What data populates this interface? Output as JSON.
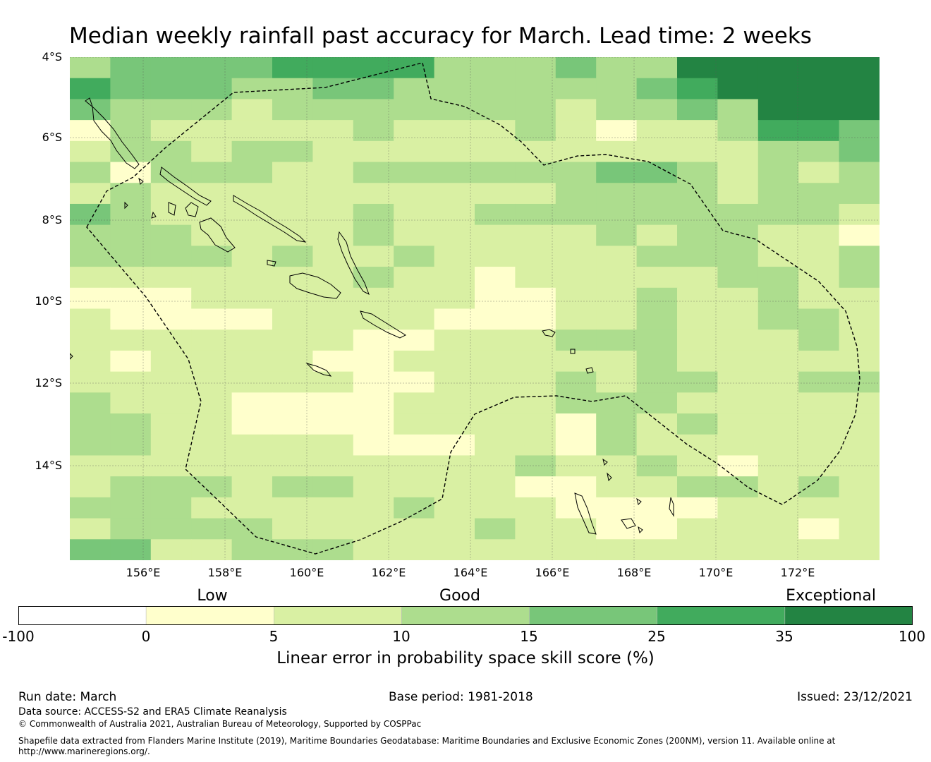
{
  "title": "Median weekly rainfall past accuracy for March. Lead time: 2 weeks",
  "map": {
    "lat_labels": [
      "4°S",
      "6°S",
      "8°S",
      "10°S",
      "12°S",
      "14°S"
    ],
    "lon_labels": [
      "156°E",
      "158°E",
      "160°E",
      "162°E",
      "164°E",
      "166°E",
      "168°E",
      "170°E",
      "172°E"
    ]
  },
  "legend": {
    "categories": [
      "Low",
      "Good",
      "Exceptional"
    ],
    "ticks": [
      "-100",
      "0",
      "5",
      "10",
      "15",
      "25",
      "35",
      "100"
    ],
    "colors": [
      "#ffffff",
      "#ffffcc",
      "#d9f0a3",
      "#addd8e",
      "#78c679",
      "#41ab5d",
      "#238443"
    ],
    "title": "Linear error in probability space skill score (%)"
  },
  "footer": {
    "run_date": "Run date: March",
    "base_period": "Base period: 1981-2018",
    "issued": "Issued: 23/12/2021",
    "data_source": "Data source: ACCESS-S2 and ERA5 Climate Reanalysis",
    "copyright": "© Commonwealth of Australia 2021, Australian Bureau of Meteorology, Supported by COSPPac",
    "shapefile_line1": "Shapefile data extracted from Flanders Marine Institute (2019), Maritime Boundaries Geodatabase: Maritime Boundaries and Exclusive Economic Zones (200NM), version 11. Available online at",
    "shapefile_line2": "http://www.marineregions.org/."
  },
  "grid_levels": [
    "34444555533343366666",
    "54443344333333456666",
    "43332333333323343666",
    "13222223222321223554",
    "23323322222222222334",
    "31333223333334432323",
    "23222222222233332333",
    "43222223223333333332",
    "33322223222223233221",
    "33332322322222333223",
    "22222223221222223323",
    "11122222221122322322",
    "21111222211122322332",
    "22222221122233322232",
    "21222211222222322222",
    "22222221122232332233",
    "32221111222233322222",
    "33221111222213232222",
    "33222221112213222222",
    "22222222222322321222",
    "23332332222112233232",
    "33322222322211112222",
    "23333222223221122212",
    "44223332222222222222"
  ]
}
